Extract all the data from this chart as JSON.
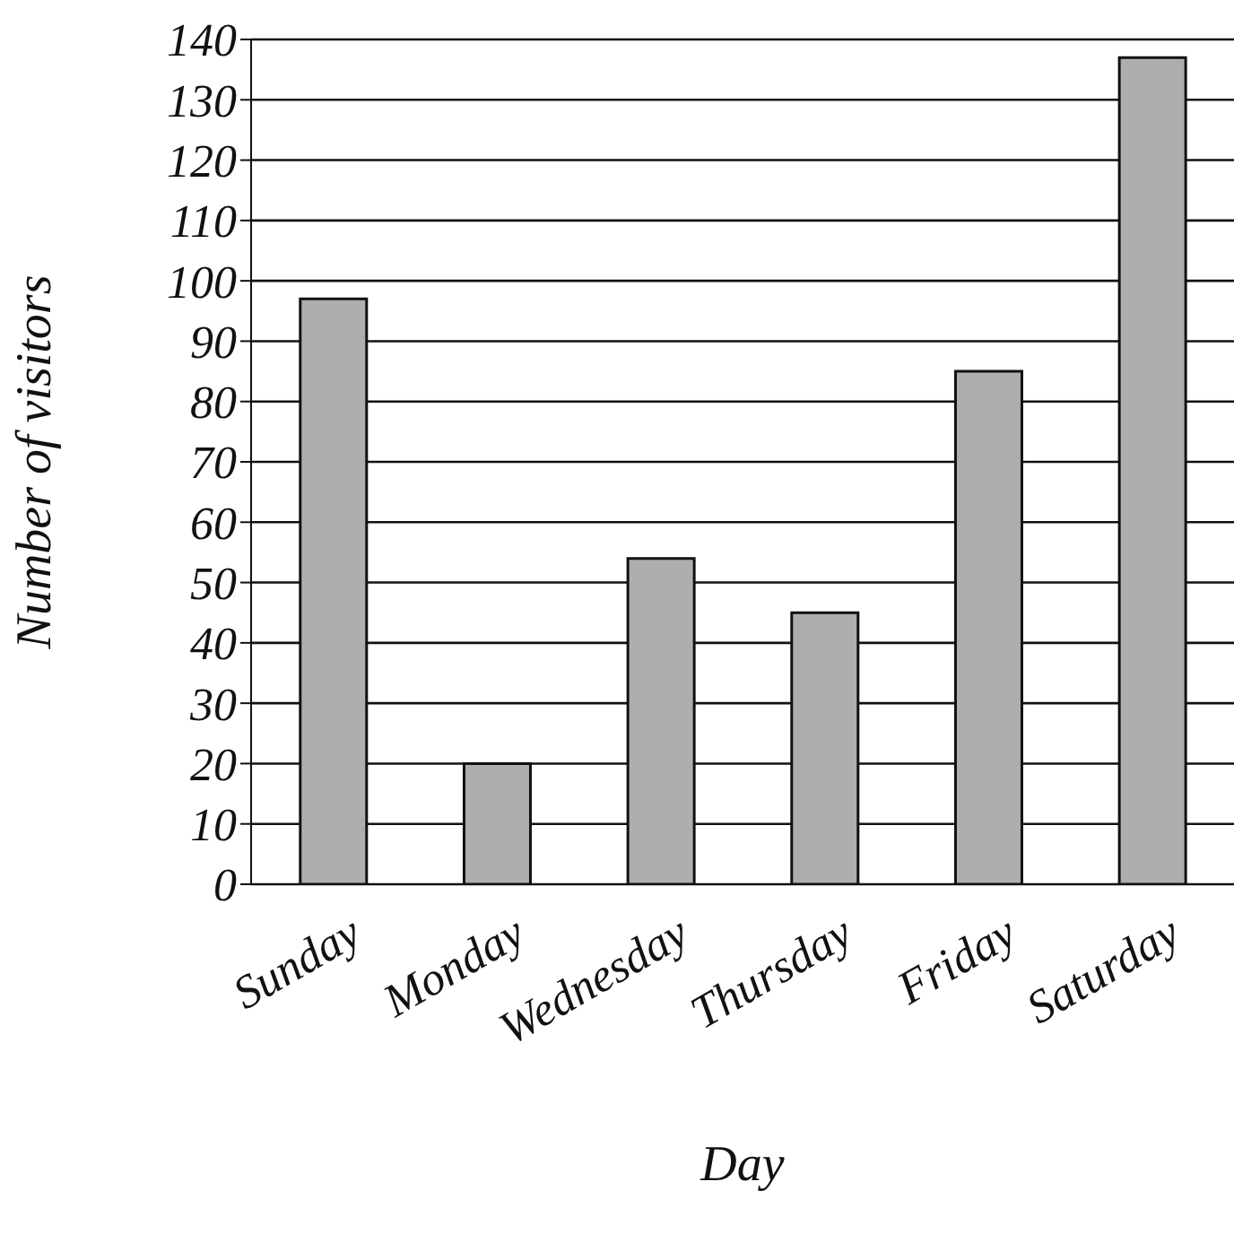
{
  "chart_data": {
    "type": "bar",
    "xlabel": "Day",
    "ylabel": "Number of visitors",
    "categories": [
      "Sunday",
      "Monday",
      "Wednesday",
      "Thursday",
      "Friday",
      "Saturday"
    ],
    "values": [
      97,
      20,
      54,
      45,
      85,
      137
    ],
    "color": "#aeaeae",
    "ylim": [
      0,
      140
    ],
    "yticks": [
      0,
      10,
      20,
      30,
      40,
      50,
      60,
      70,
      80,
      90,
      100,
      110,
      120,
      130,
      140
    ],
    "grid": "y"
  }
}
